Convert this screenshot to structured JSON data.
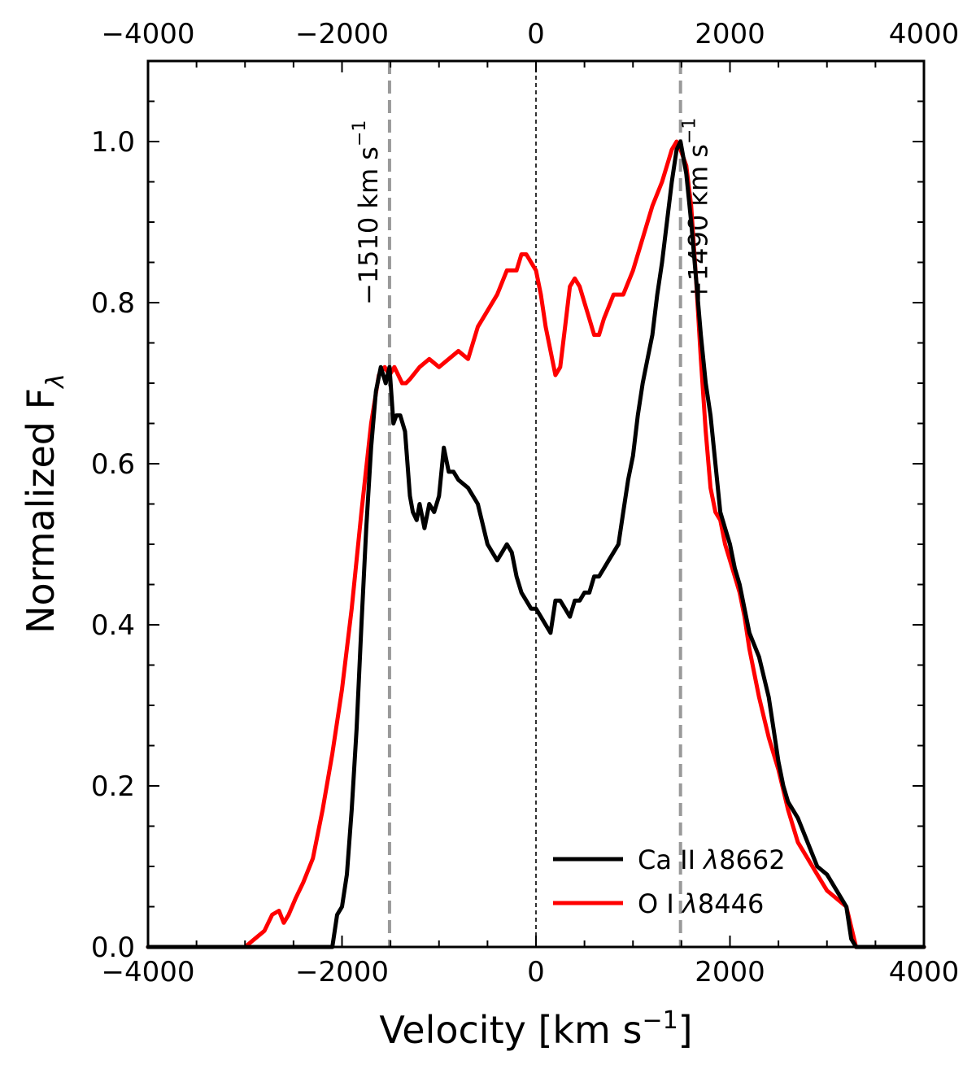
{
  "chart_data": {
    "type": "line",
    "xlabel": "Velocity [km s",
    "xlabel_sup": "−1",
    "xlabel_end": "]",
    "ylabel": "Normalized F",
    "ylabel_sub": "λ",
    "xlim": [
      -4000,
      4000
    ],
    "ylim": [
      0,
      1.1
    ],
    "x_ticks": [
      -4000,
      -2000,
      0,
      2000,
      4000
    ],
    "x_tick_labels": [
      "−4000",
      "−2000",
      "0",
      "2000",
      "4000"
    ],
    "y_ticks": [
      0.0,
      0.2,
      0.4,
      0.6,
      0.8,
      1.0
    ],
    "y_tick_labels": [
      "0.0",
      "0.2",
      "0.4",
      "0.6",
      "0.8",
      "1.0"
    ],
    "top_axis_tick_labels": [
      "−4000",
      "−2000",
      "0",
      "2000",
      "4000"
    ],
    "grid": false,
    "legend_position": "bottom-right",
    "reference_lines": [
      {
        "x": -1510,
        "label": "−1510 km s",
        "sup": "−1",
        "style": "dashed",
        "color": "#999999"
      },
      {
        "x": 1490,
        "label": "+1490 km s",
        "sup": "−1",
        "style": "dashed",
        "color": "#999999"
      },
      {
        "x": 0,
        "style": "dotted",
        "color": "#000000"
      }
    ],
    "series": [
      {
        "name": "O I λ8446",
        "color": "#ff0000",
        "x": [
          -4000,
          -3000,
          -2900,
          -2800,
          -2720,
          -2650,
          -2600,
          -2550,
          -2480,
          -2400,
          -2300,
          -2200,
          -2100,
          -2000,
          -1900,
          -1800,
          -1700,
          -1620,
          -1560,
          -1510,
          -1460,
          -1420,
          -1380,
          -1340,
          -1300,
          -1200,
          -1100,
          -1000,
          -900,
          -800,
          -700,
          -600,
          -500,
          -400,
          -300,
          -200,
          -150,
          -100,
          -50,
          0,
          50,
          100,
          150,
          200,
          250,
          300,
          350,
          400,
          450,
          500,
          550,
          600,
          650,
          700,
          800,
          900,
          1000,
          1100,
          1200,
          1300,
          1350,
          1400,
          1450,
          1490,
          1550,
          1600,
          1650,
          1700,
          1750,
          1800,
          1850,
          1900,
          1950,
          2000,
          2050,
          2100,
          2150,
          2200,
          2300,
          2400,
          2500,
          2600,
          2700,
          2800,
          2900,
          3000,
          3100,
          3200,
          3300,
          3400,
          4000
        ],
        "y": [
          0.0,
          0.0,
          0.01,
          0.02,
          0.04,
          0.045,
          0.03,
          0.04,
          0.06,
          0.08,
          0.11,
          0.17,
          0.24,
          0.32,
          0.42,
          0.54,
          0.65,
          0.71,
          0.72,
          0.71,
          0.72,
          0.71,
          0.7,
          0.7,
          0.705,
          0.72,
          0.73,
          0.72,
          0.73,
          0.74,
          0.73,
          0.77,
          0.79,
          0.81,
          0.84,
          0.84,
          0.86,
          0.86,
          0.85,
          0.84,
          0.81,
          0.77,
          0.74,
          0.71,
          0.72,
          0.77,
          0.82,
          0.83,
          0.82,
          0.8,
          0.78,
          0.76,
          0.76,
          0.78,
          0.81,
          0.81,
          0.84,
          0.88,
          0.92,
          0.95,
          0.97,
          0.99,
          1.0,
          0.99,
          0.97,
          0.92,
          0.83,
          0.73,
          0.64,
          0.57,
          0.54,
          0.53,
          0.5,
          0.48,
          0.46,
          0.44,
          0.41,
          0.37,
          0.31,
          0.26,
          0.22,
          0.17,
          0.13,
          0.11,
          0.09,
          0.07,
          0.06,
          0.05,
          0.0,
          0.0,
          0.0
        ]
      },
      {
        "name": "Ca II λ8662",
        "color": "#000000",
        "x": [
          -4000,
          -2100,
          -2050,
          -2000,
          -1950,
          -1900,
          -1850,
          -1800,
          -1750,
          -1700,
          -1650,
          -1600,
          -1550,
          -1510,
          -1470,
          -1440,
          -1400,
          -1350,
          -1300,
          -1270,
          -1230,
          -1200,
          -1150,
          -1100,
          -1050,
          -1000,
          -950,
          -900,
          -850,
          -800,
          -700,
          -600,
          -500,
          -450,
          -400,
          -350,
          -300,
          -250,
          -200,
          -150,
          -100,
          -50,
          0,
          50,
          100,
          150,
          200,
          250,
          300,
          350,
          400,
          450,
          500,
          550,
          600,
          650,
          700,
          750,
          800,
          850,
          900,
          950,
          1000,
          1050,
          1100,
          1150,
          1200,
          1250,
          1300,
          1350,
          1400,
          1450,
          1490,
          1550,
          1600,
          1650,
          1700,
          1750,
          1800,
          1850,
          1900,
          1950,
          2000,
          2050,
          2100,
          2150,
          2200,
          2300,
          2400,
          2450,
          2500,
          2550,
          2600,
          2700,
          2800,
          2900,
          3000,
          3100,
          3200,
          3250,
          3300,
          4000
        ],
        "y": [
          0.0,
          0.0,
          0.04,
          0.05,
          0.09,
          0.17,
          0.27,
          0.4,
          0.52,
          0.62,
          0.69,
          0.72,
          0.7,
          0.72,
          0.65,
          0.66,
          0.66,
          0.64,
          0.56,
          0.54,
          0.53,
          0.55,
          0.52,
          0.55,
          0.54,
          0.56,
          0.62,
          0.59,
          0.59,
          0.58,
          0.57,
          0.55,
          0.5,
          0.49,
          0.48,
          0.49,
          0.5,
          0.49,
          0.46,
          0.44,
          0.43,
          0.42,
          0.42,
          0.41,
          0.4,
          0.39,
          0.43,
          0.43,
          0.42,
          0.41,
          0.43,
          0.43,
          0.44,
          0.44,
          0.46,
          0.46,
          0.47,
          0.48,
          0.49,
          0.5,
          0.54,
          0.58,
          0.61,
          0.66,
          0.7,
          0.73,
          0.76,
          0.81,
          0.85,
          0.9,
          0.95,
          0.99,
          1.0,
          0.96,
          0.9,
          0.83,
          0.76,
          0.7,
          0.66,
          0.6,
          0.54,
          0.52,
          0.5,
          0.47,
          0.45,
          0.42,
          0.39,
          0.36,
          0.31,
          0.27,
          0.23,
          0.2,
          0.18,
          0.16,
          0.13,
          0.1,
          0.09,
          0.07,
          0.05,
          0.01,
          0.0,
          0.0
        ]
      }
    ],
    "legend": [
      {
        "label": "Ca II ",
        "lambda": "λ",
        "number": "8662",
        "color": "#000000"
      },
      {
        "label": "O I ",
        "lambda": "λ",
        "number": "8446",
        "color": "#ff0000"
      }
    ]
  }
}
